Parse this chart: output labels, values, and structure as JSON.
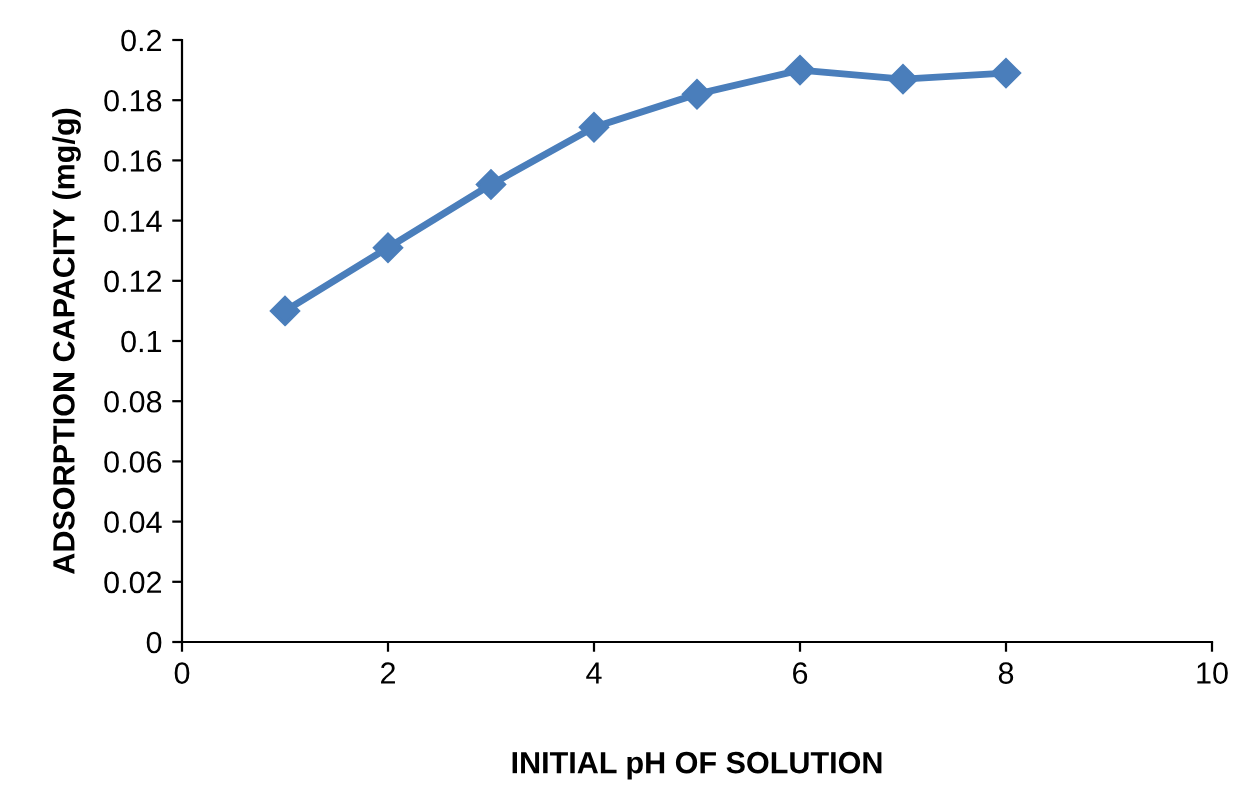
{
  "chart_data": {
    "type": "line",
    "xlabel": "INITIAL pH OF SOLUTION",
    "ylabel": "ADSORPTION CAPACITY (mg/g)",
    "x": [
      1,
      2,
      3,
      4,
      5,
      6,
      7,
      8
    ],
    "series": [
      {
        "color": "#4a7ebb",
        "values": [
          0.11,
          0.131,
          0.152,
          0.171,
          0.182,
          0.19,
          0.187,
          0.189
        ]
      }
    ],
    "xlim": [
      0,
      10
    ],
    "xticks": [
      0,
      2,
      4,
      6,
      8,
      10
    ],
    "ylim": [
      0,
      0.2
    ],
    "yticks": [
      0,
      0.02,
      0.04,
      0.06,
      0.08,
      0.1,
      0.12,
      0.14,
      0.16,
      0.18,
      0.2
    ],
    "marker": "diamond",
    "line_style": "solid",
    "grid": false,
    "legend": false
  }
}
